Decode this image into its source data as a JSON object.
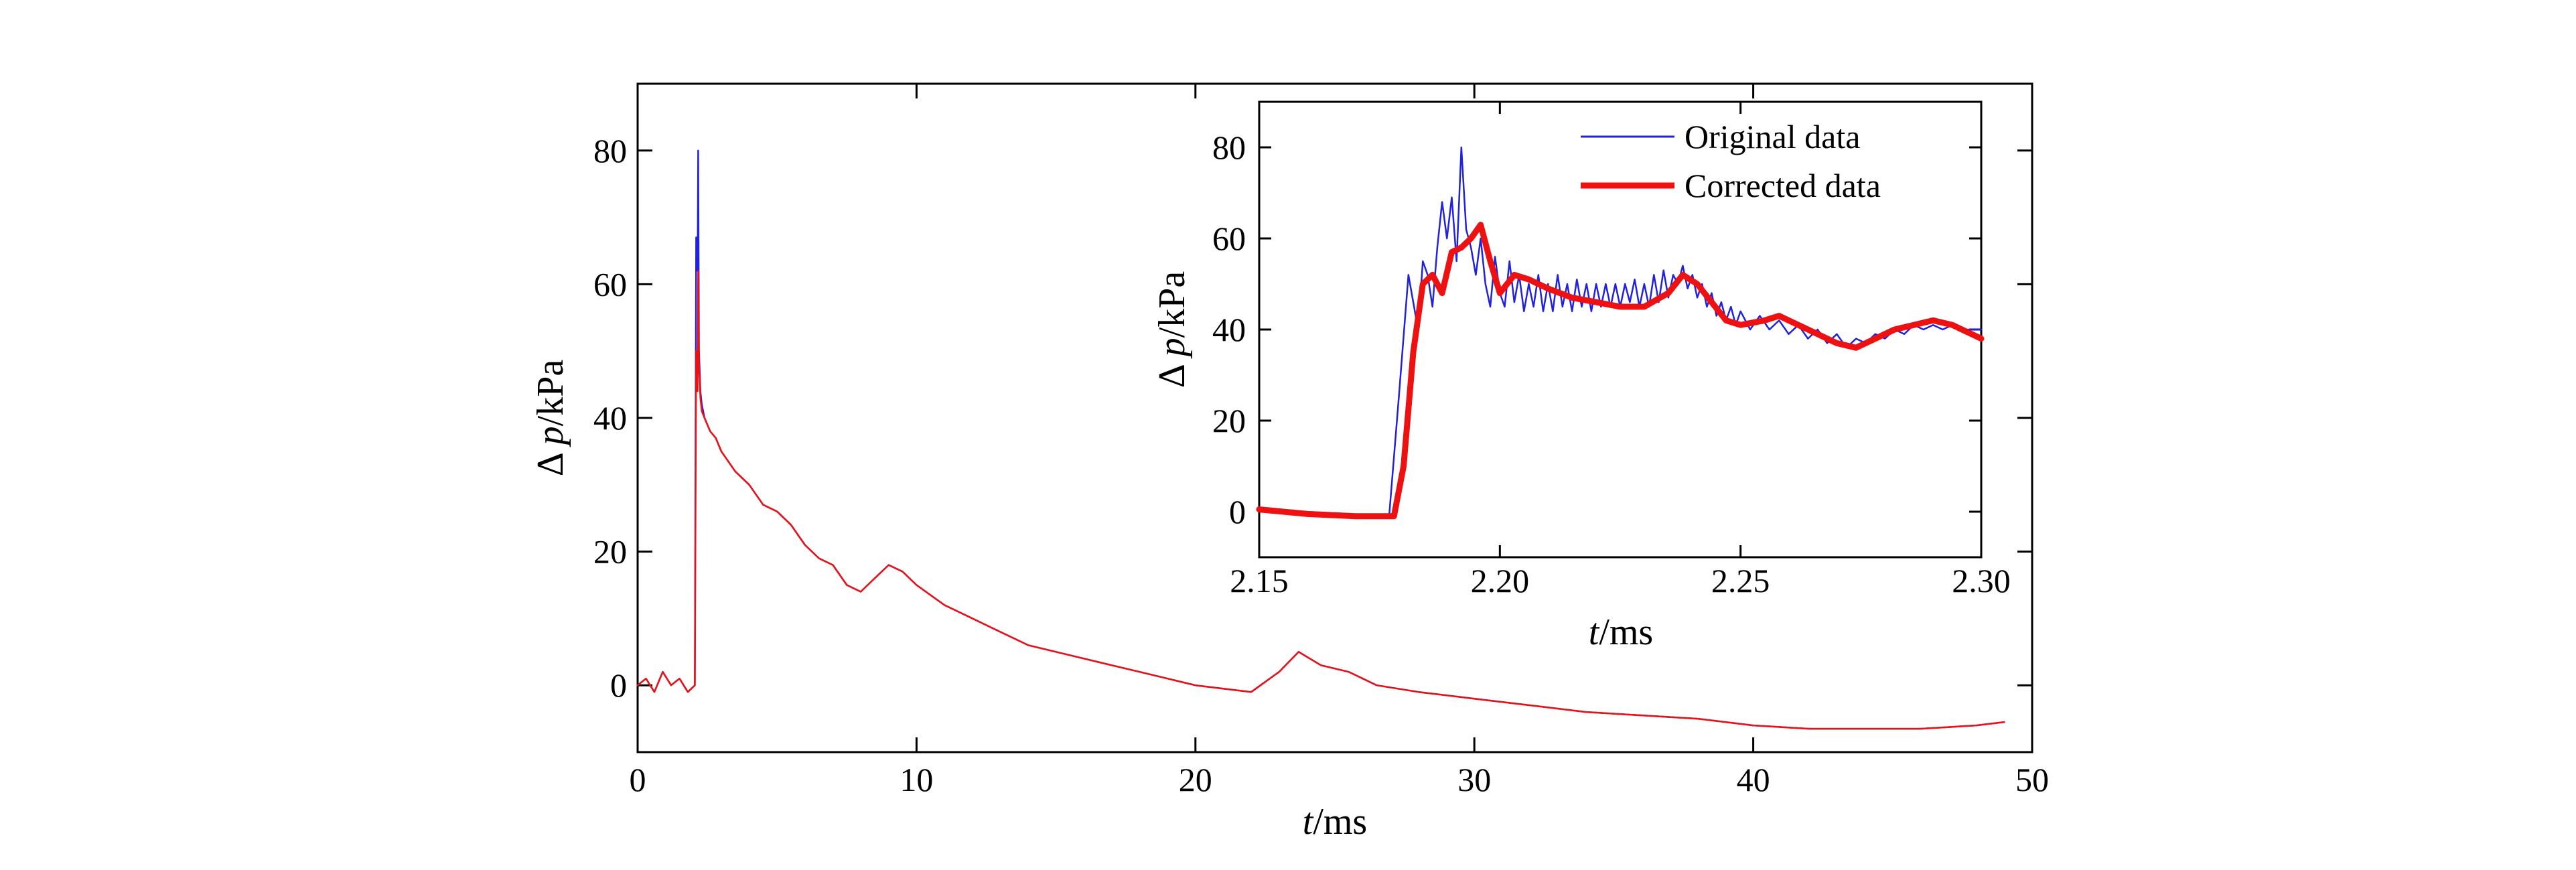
{
  "chart_data": [
    {
      "id": "main",
      "type": "line",
      "xlabel_italic": "t",
      "xlabel_rest": "/ms",
      "ylabel_delta": "Δ ",
      "ylabel_italic": "p",
      "ylabel_rest": "/kPa",
      "xlim": [
        0,
        50
      ],
      "ylim": [
        -10,
        90
      ],
      "xticks": [
        0,
        10,
        20,
        30,
        40,
        50
      ],
      "yticks": [
        0,
        20,
        40,
        60,
        80
      ],
      "grid": false,
      "series": [
        {
          "color": "#2222dd",
          "x": [
            0,
            0.3,
            0.6,
            0.9,
            1.2,
            1.5,
            1.8,
            2.05,
            2.1,
            2.15,
            2.17,
            2.2,
            2.25,
            2.3,
            2.4,
            2.6,
            2.8,
            3,
            3.5,
            4,
            4.5,
            5,
            5.5,
            6,
            6.5,
            7,
            7.5,
            8,
            8.5,
            9,
            9.5,
            10,
            11,
            12,
            13,
            14,
            15,
            16,
            17,
            18,
            19,
            20,
            21,
            22,
            23,
            23.7,
            24.5,
            25.5,
            26.5,
            28,
            30,
            32,
            34,
            36,
            38,
            40,
            42,
            44,
            46,
            48,
            49
          ],
          "y": [
            0,
            1,
            -1,
            2,
            0,
            1,
            -1,
            0,
            67,
            62,
            80,
            50,
            44,
            42,
            40,
            38,
            37,
            35,
            32,
            30,
            27,
            26,
            24,
            21,
            19,
            18,
            15,
            14,
            16,
            18,
            17,
            15,
            12,
            10,
            8,
            6,
            5,
            4,
            3,
            2,
            1,
            0,
            -0.5,
            -1,
            2,
            5,
            3,
            2,
            0,
            -1,
            -2,
            -3,
            -4,
            -4.5,
            -5,
            -6,
            -6.5,
            -6.5,
            -6.5,
            -6,
            -5.5
          ]
        },
        {
          "color": "#ee1111",
          "x": [
            0,
            0.3,
            0.6,
            0.9,
            1.2,
            1.5,
            1.8,
            2.05,
            2.1,
            2.15,
            2.17,
            2.2,
            2.25,
            2.3,
            2.4,
            2.6,
            2.8,
            3,
            3.5,
            4,
            4.5,
            5,
            5.5,
            6,
            6.5,
            7,
            7.5,
            8,
            8.5,
            9,
            9.5,
            10,
            11,
            12,
            13,
            14,
            15,
            16,
            17,
            18,
            19,
            20,
            21,
            22,
            23,
            23.7,
            24.5,
            25.5,
            26.5,
            28,
            30,
            32,
            34,
            36,
            38,
            40,
            42,
            44,
            46,
            48,
            49
          ],
          "y": [
            0,
            1,
            -1,
            2,
            0,
            1,
            -1,
            0,
            50,
            44,
            62,
            48,
            43,
            41,
            40,
            38,
            37,
            35,
            32,
            30,
            27,
            26,
            24,
            21,
            19,
            18,
            15,
            14,
            16,
            18,
            17,
            15,
            12,
            10,
            8,
            6,
            5,
            4,
            3,
            2,
            1,
            0,
            -0.5,
            -1,
            2,
            5,
            3,
            2,
            0,
            -1,
            -2,
            -3,
            -4,
            -4.5,
            -5,
            -6,
            -6.5,
            -6.5,
            -6.5,
            -6,
            -5.5
          ]
        }
      ]
    },
    {
      "id": "inset",
      "type": "line",
      "xlabel_italic": "t",
      "xlabel_rest": "/ms",
      "ylabel_delta": "Δ ",
      "ylabel_italic": "p",
      "ylabel_rest": "/kPa",
      "xlim": [
        2.15,
        2.3
      ],
      "ylim": [
        -10,
        90
      ],
      "xticks": [
        2.15,
        2.2,
        2.25,
        2.3
      ],
      "xtick_labels": [
        "2.15",
        "2.20",
        "2.25",
        "2.30"
      ],
      "yticks": [
        0,
        20,
        40,
        60,
        80
      ],
      "legend_position": "top-right",
      "grid": false,
      "series": [
        {
          "name": "Original data",
          "color": "#2222dd",
          "width": 2.5,
          "x": [
            2.15,
            2.16,
            2.17,
            2.177,
            2.179,
            2.181,
            2.183,
            2.184,
            2.185,
            2.186,
            2.187,
            2.188,
            2.189,
            2.19,
            2.191,
            2.192,
            2.193,
            2.194,
            2.195,
            2.196,
            2.197,
            2.198,
            2.199,
            2.2,
            2.201,
            2.202,
            2.203,
            2.204,
            2.205,
            2.206,
            2.207,
            2.208,
            2.209,
            2.21,
            2.211,
            2.212,
            2.213,
            2.214,
            2.215,
            2.216,
            2.217,
            2.218,
            2.219,
            2.22,
            2.221,
            2.222,
            2.223,
            2.224,
            2.225,
            2.226,
            2.227,
            2.228,
            2.229,
            2.23,
            2.231,
            2.232,
            2.233,
            2.234,
            2.235,
            2.236,
            2.237,
            2.238,
            2.239,
            2.24,
            2.241,
            2.242,
            2.243,
            2.244,
            2.245,
            2.246,
            2.247,
            2.248,
            2.249,
            2.25,
            2.252,
            2.254,
            2.256,
            2.258,
            2.26,
            2.262,
            2.264,
            2.266,
            2.268,
            2.27,
            2.272,
            2.274,
            2.276,
            2.278,
            2.28,
            2.282,
            2.284,
            2.286,
            2.288,
            2.29,
            2.292,
            2.294,
            2.296,
            2.298,
            2.3
          ],
          "y": [
            0,
            -0.5,
            -1,
            -1,
            25,
            52,
            40,
            55,
            52,
            45,
            58,
            68,
            60,
            69,
            55,
            80,
            62,
            58,
            52,
            60,
            50,
            45,
            56,
            48,
            45,
            55,
            46,
            52,
            44,
            50,
            45,
            52,
            44,
            50,
            44,
            52,
            45,
            50,
            44,
            51,
            45,
            50,
            44,
            50,
            45,
            50,
            45,
            50,
            45,
            50,
            46,
            51,
            45,
            50,
            45,
            52,
            46,
            53,
            47,
            52,
            50,
            54,
            49,
            52,
            47,
            50,
            45,
            48,
            43,
            46,
            42,
            45,
            41,
            44,
            40,
            43,
            40,
            42,
            39,
            41,
            38,
            40,
            37,
            39,
            36,
            38,
            37,
            39,
            38,
            40,
            39,
            41,
            40,
            41,
            40,
            41,
            40,
            40,
            40
          ]
        },
        {
          "name": "Corrected data",
          "color": "#ee1111",
          "width": 9,
          "x": [
            2.15,
            2.16,
            2.17,
            2.178,
            2.18,
            2.182,
            2.184,
            2.186,
            2.188,
            2.19,
            2.192,
            2.194,
            2.196,
            2.198,
            2.2,
            2.203,
            2.206,
            2.21,
            2.215,
            2.22,
            2.225,
            2.23,
            2.235,
            2.238,
            2.241,
            2.244,
            2.247,
            2.25,
            2.255,
            2.258,
            2.262,
            2.266,
            2.27,
            2.274,
            2.278,
            2.282,
            2.286,
            2.29,
            2.294,
            2.298,
            2.3
          ],
          "y": [
            0.5,
            -0.5,
            -1,
            -1,
            10,
            35,
            50,
            52,
            48,
            57,
            58,
            60,
            63,
            55,
            48,
            52,
            51,
            49,
            47,
            46,
            45,
            45,
            48,
            52,
            50,
            46,
            42,
            41,
            42,
            43,
            41,
            39,
            37,
            36,
            38,
            40,
            41,
            42,
            41,
            39,
            38
          ]
        }
      ]
    }
  ]
}
